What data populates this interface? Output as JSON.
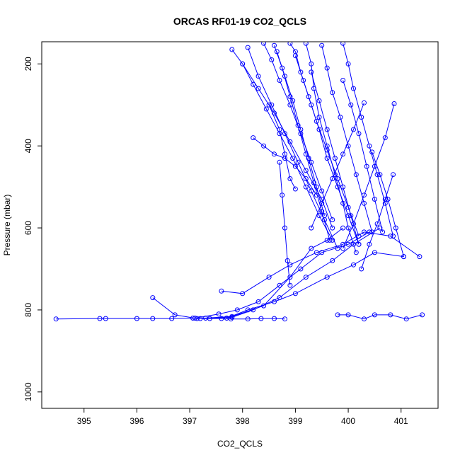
{
  "chart_data": {
    "type": "line",
    "title": "ORCAS RF01-19 CO2_QCLS",
    "xlabel": "CO2_QCLS",
    "ylabel": "Pressure (mbar)",
    "xlim": [
      394.2,
      401.7
    ],
    "ylim": [
      1040,
      146
    ],
    "y_reversed": true,
    "x_ticks": [
      395,
      396,
      397,
      398,
      399,
      400,
      401
    ],
    "y_ticks": [
      200,
      400,
      600,
      800,
      1000
    ],
    "grid": false,
    "legend": "none",
    "marker": "open-circle",
    "color": "#0000ff",
    "series": [
      {
        "x": [
          394.47,
          395.3,
          395.41,
          396.0,
          396.3,
          396.66,
          397.06,
          397.2,
          397.38,
          397.6,
          397.78,
          398.1,
          398.35,
          398.6,
          398.8
        ],
        "y": [
          822,
          821,
          821,
          821,
          821,
          821,
          820,
          821,
          821,
          821,
          822,
          822,
          821,
          821,
          822
        ]
      },
      {
        "x": [
          396.3,
          396.72,
          397.14,
          397.8,
          398.4,
          398.9,
          399.3,
          399.6,
          399.9
        ],
        "y": [
          770,
          812,
          821,
          816,
          790,
          720,
          650,
          630,
          600
        ]
      },
      {
        "x": [
          397.1,
          397.55,
          397.9,
          398.3,
          398.7,
          399.1,
          399.5,
          400.0,
          400.4
        ],
        "y": [
          820,
          810,
          800,
          780,
          740,
          700,
          660,
          640,
          610
        ]
      },
      {
        "x": [
          397.3,
          397.8,
          398.2,
          398.7,
          399.2,
          399.7,
          400.1,
          400.6
        ],
        "y": [
          820,
          818,
          800,
          770,
          720,
          680,
          640,
          600
        ]
      },
      {
        "x": [
          397.6,
          398.0,
          398.5,
          398.9,
          399.4,
          399.9,
          400.3,
          400.8,
          401.35
        ],
        "y": [
          754,
          760,
          720,
          690,
          660,
          640,
          610,
          620,
          670
        ]
      },
      {
        "x": [
          397.7,
          398.1,
          398.6,
          399.0,
          399.6,
          400.1,
          400.5,
          401.05
        ],
        "y": [
          820,
          800,
          780,
          760,
          720,
          690,
          660,
          670
        ]
      },
      {
        "x": [
          399.8,
          400.0,
          400.3,
          400.5,
          400.8,
          401.1,
          401.4
        ],
        "y": [
          812,
          812,
          822,
          812,
          812,
          822,
          812
        ]
      },
      {
        "x": [
          399.2,
          399.3,
          399.35,
          399.45,
          399.6,
          399.75,
          399.9,
          400.0,
          400.15
        ],
        "y": [
          150,
          200,
          260,
          330,
          400,
          470,
          540,
          600,
          660
        ]
      },
      {
        "x": [
          398.4,
          398.55,
          398.7,
          398.9,
          399.1,
          399.3,
          399.5,
          399.7
        ],
        "y": [
          150,
          190,
          240,
          300,
          370,
          440,
          510,
          580
        ]
      },
      {
        "x": [
          398.9,
          399.0,
          399.1,
          399.25,
          399.4,
          399.6,
          399.8,
          400.0,
          400.2
        ],
        "y": [
          150,
          170,
          220,
          280,
          340,
          410,
          480,
          550,
          620
        ]
      },
      {
        "x": [
          399.5,
          399.6,
          399.7,
          399.85,
          400.0,
          400.15,
          400.3,
          400.45
        ],
        "y": [
          155,
          210,
          270,
          330,
          400,
          470,
          540,
          610
        ]
      },
      {
        "x": [
          398.1,
          398.3,
          398.55,
          398.8,
          399.05,
          399.3,
          399.55,
          399.8
        ],
        "y": [
          160,
          230,
          300,
          370,
          440,
          510,
          580,
          650
        ]
      },
      {
        "x": [
          399.9,
          400.0,
          400.1,
          400.25,
          400.4,
          400.55,
          400.7,
          400.85
        ],
        "y": [
          150,
          200,
          260,
          330,
          400,
          470,
          540,
          620
        ]
      },
      {
        "x": [
          397.8,
          398.0,
          398.3,
          398.6,
          398.9,
          399.2,
          399.5,
          399.7
        ],
        "y": [
          165,
          200,
          260,
          320,
          390,
          460,
          530,
          600
        ]
      },
      {
        "x": [
          398.6,
          398.75,
          398.9,
          399.05,
          399.2,
          399.35,
          399.5,
          399.65
        ],
        "y": [
          155,
          210,
          280,
          350,
          420,
          490,
          560,
          630
        ]
      },
      {
        "x": [
          399.0,
          399.15,
          399.3,
          399.45,
          399.6,
          399.8,
          400.0,
          400.2
        ],
        "y": [
          180,
          240,
          300,
          360,
          430,
          500,
          570,
          640
        ]
      },
      {
        "x": [
          398.2,
          398.4,
          398.6,
          398.8,
          399.0,
          399.2,
          399.4
        ],
        "y": [
          380,
          400,
          420,
          430,
          450,
          480,
          520
        ]
      },
      {
        "x": [
          398.5,
          398.7,
          398.8,
          398.9,
          399.0
        ],
        "y": [
          300,
          360,
          420,
          480,
          505
        ]
      },
      {
        "x": [
          400.3,
          400.1,
          399.9,
          399.7,
          399.5,
          399.3
        ],
        "y": [
          295,
          360,
          420,
          480,
          540,
          600
        ]
      },
      {
        "x": [
          400.87,
          400.7,
          400.5,
          400.3,
          400.1,
          399.9
        ],
        "y": [
          297,
          380,
          450,
          520,
          590,
          650
        ]
      },
      {
        "x": [
          400.45,
          400.6,
          400.75,
          400.9,
          401.05
        ],
        "y": [
          415,
          470,
          530,
          600,
          670
        ]
      },
      {
        "x": [
          399.9,
          400.05,
          400.2,
          400.35,
          400.5,
          400.65
        ],
        "y": [
          240,
          300,
          370,
          450,
          530,
          610
        ]
      },
      {
        "x": [
          398.0,
          398.2,
          398.45,
          398.7,
          398.95,
          399.2,
          399.45,
          399.7
        ],
        "y": [
          200,
          250,
          310,
          370,
          430,
          500,
          570,
          630
        ]
      },
      {
        "x": [
          399.3,
          399.45,
          399.6,
          399.75,
          399.9,
          400.05,
          400.2
        ],
        "y": [
          220,
          290,
          360,
          430,
          500,
          570,
          640
        ]
      },
      {
        "x": [
          398.65,
          398.8,
          398.95,
          399.1,
          399.25,
          399.4,
          399.55
        ],
        "y": [
          170,
          230,
          290,
          360,
          430,
          500,
          570
        ]
      },
      {
        "x": [
          400.85,
          400.7,
          400.55,
          400.4,
          400.25
        ],
        "y": [
          470,
          530,
          590,
          640,
          700
        ]
      },
      {
        "x": [
          398.7,
          398.75,
          398.8,
          398.85,
          398.9
        ],
        "y": [
          440,
          520,
          600,
          680,
          740
        ]
      }
    ]
  }
}
